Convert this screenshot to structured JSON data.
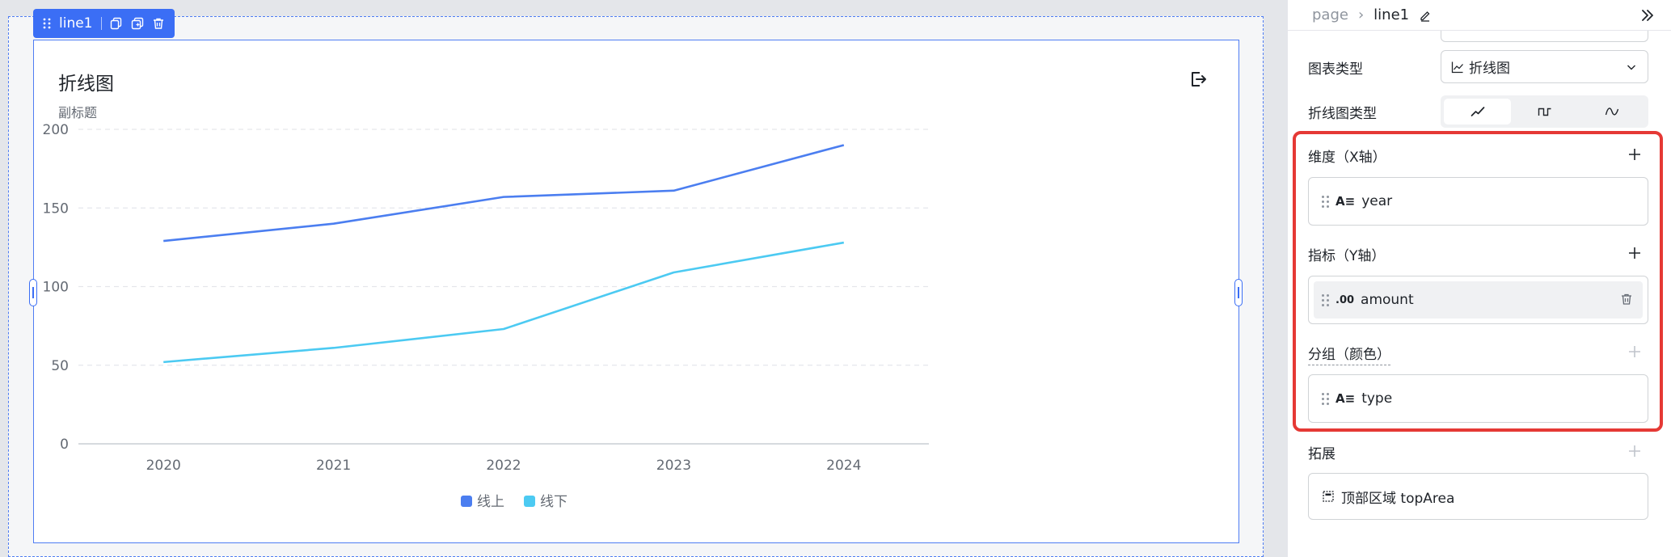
{
  "toolbar": {
    "component_name": "line1"
  },
  "chart_data": {
    "type": "line",
    "title": "折线图",
    "subtitle": "副标题",
    "categories": [
      "2020",
      "2021",
      "2022",
      "2023",
      "2024"
    ],
    "series": [
      {
        "name": "线上",
        "values": [
          129,
          140,
          157,
          161,
          190
        ],
        "color": "#4b7ef0"
      },
      {
        "name": "线下",
        "values": [
          52,
          61,
          73,
          109,
          128
        ],
        "color": "#4ccaf2"
      }
    ],
    "ylim": [
      0,
      200
    ],
    "yticks": [
      0,
      50,
      100,
      150,
      200
    ],
    "grid": true,
    "legend_position": "bottom-center"
  },
  "panel": {
    "breadcrumb": {
      "root": "page",
      "current": "line1"
    },
    "chart_type_label": "图表类型",
    "chart_type_value": "折线图",
    "line_type_label": "折线图类型",
    "line_type_options": [
      "straight-line-icon",
      "step-line-icon",
      "smooth-line-icon"
    ],
    "dimension": {
      "title": "维度（X轴）",
      "field": "year",
      "field_type": "A≡"
    },
    "metric": {
      "title": "指标（Y轴）",
      "field": "amount",
      "field_type": ".00"
    },
    "group": {
      "title": "分组（颜色）",
      "field": "type",
      "field_type": "A≡"
    },
    "extension": {
      "title": "拓展",
      "item": "顶部区域 topArea"
    }
  }
}
